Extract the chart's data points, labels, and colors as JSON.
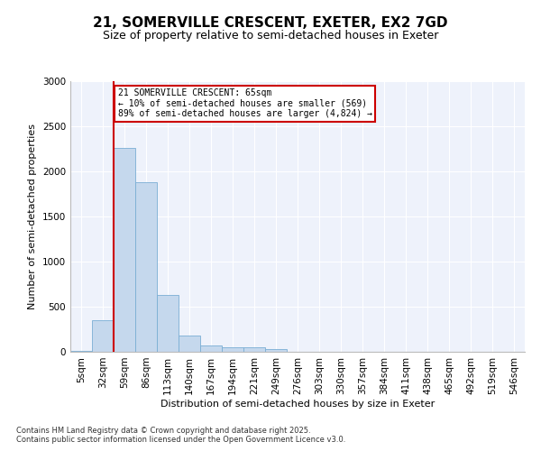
{
  "title": "21, SOMERVILLE CRESCENT, EXETER, EX2 7GD",
  "subtitle": "Size of property relative to semi-detached houses in Exeter",
  "xlabel": "Distribution of semi-detached houses by size in Exeter",
  "ylabel": "Number of semi-detached properties",
  "footnote1": "Contains HM Land Registry data © Crown copyright and database right 2025.",
  "footnote2": "Contains public sector information licensed under the Open Government Licence v3.0.",
  "categories": [
    "5sqm",
    "32sqm",
    "59sqm",
    "86sqm",
    "113sqm",
    "140sqm",
    "167sqm",
    "194sqm",
    "221sqm",
    "249sqm",
    "276sqm",
    "303sqm",
    "330sqm",
    "357sqm",
    "384sqm",
    "411sqm",
    "438sqm",
    "465sqm",
    "492sqm",
    "519sqm",
    "546sqm"
  ],
  "values": [
    10,
    350,
    2260,
    1880,
    630,
    185,
    70,
    55,
    50,
    35,
    0,
    0,
    0,
    0,
    0,
    0,
    0,
    0,
    0,
    0,
    0
  ],
  "bar_color": "#c5d8ed",
  "bar_edge_color": "#7aaed4",
  "ylim": [
    0,
    3000
  ],
  "yticks": [
    0,
    500,
    1000,
    1500,
    2000,
    2500,
    3000
  ],
  "property_label": "21 SOMERVILLE CRESCENT: 65sqm",
  "pct_smaller": "10%",
  "n_smaller": 569,
  "pct_larger": "89%",
  "n_larger": "4,824",
  "vline_index": 2,
  "annotation_box_color": "#cc0000",
  "background_color": "#eef2fb",
  "grid_color": "#ffffff",
  "title_fontsize": 11,
  "subtitle_fontsize": 9,
  "tick_fontsize": 7.5,
  "ylabel_fontsize": 8,
  "xlabel_fontsize": 8
}
